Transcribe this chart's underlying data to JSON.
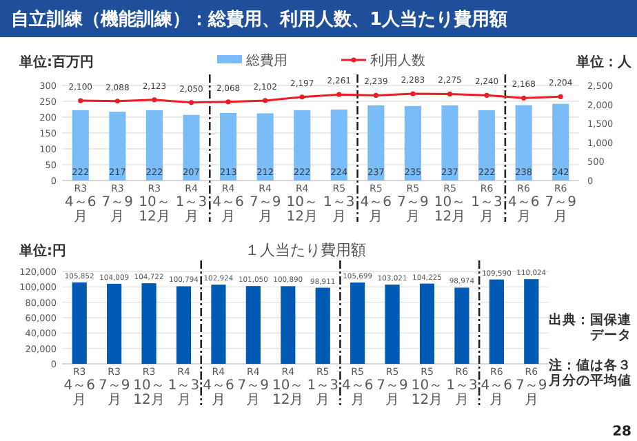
{
  "chart_data": [
    {
      "type": "bar",
      "title": "自立訓練（機能訓練）：総費用、利用人数、1人当たり費用額",
      "ylabel": "単位:百万円",
      "y2label": "単位：人",
      "categories": [
        "R3\n4～6月",
        "R3\n7～9月",
        "R3\n10～12月",
        "R4\n1～3月",
        "R4\n4～6月",
        "R4\n7～9月",
        "R4\n10～12月",
        "R5\n1～3月",
        "R5\n4～6月",
        "R5\n7～9月",
        "R5\n10～12月",
        "R6\n1～3月",
        "R6\n4～6月",
        "R6\n7～9月"
      ],
      "series": [
        {
          "name": "総費用",
          "color": "#7abcf7",
          "values": [
            222,
            217,
            222,
            207,
            213,
            212,
            222,
            224,
            237,
            235,
            237,
            222,
            238,
            242
          ]
        },
        {
          "name": "利用人数",
          "type": "line",
          "axis": "y2",
          "color": "#ee1c25",
          "marker": "circle",
          "values": [
            2100,
            2088,
            2123,
            2050,
            2068,
            2102,
            2197,
            2261,
            2239,
            2283,
            2275,
            2240,
            2168,
            2204
          ],
          "value_labels": [
            "2,100",
            "2,088",
            "2,123",
            "2,050",
            "2,068",
            "2,102",
            "2,197",
            "2,261",
            "2,239",
            "2,283",
            "2,275",
            "2,240",
            "2,168",
            "2,204"
          ]
        }
      ],
      "ylim": [
        0,
        300
      ],
      "yticks": [
        0,
        50,
        100,
        150,
        200,
        250,
        300
      ],
      "y2lim": [
        0,
        2500
      ],
      "y2ticks": [
        0,
        500,
        {
          "value": 1000,
          "label": "1,000"
        },
        {
          "value": 1500,
          "label": "1,500"
        },
        {
          "value": 2000,
          "label": "2,000"
        },
        {
          "value": 2500,
          "label": "2,500"
        }
      ],
      "data_labels": true,
      "grid": "y",
      "legend": "top"
    },
    {
      "type": "bar",
      "title": "１人当たり費用額",
      "ylabel": "単位:円",
      "categories": [
        "R3\n4～6月",
        "R3\n7～9月",
        "R3\n10～12月",
        "R4\n1～3月",
        "R4\n4～6月",
        "R4\n7～9月",
        "R4\n10～12月",
        "R5\n1～3月",
        "R5\n4～6月",
        "R5\n7～9月",
        "R5\n10～12月",
        "R6\n1～3月",
        "R6\n4～6月",
        "R6\n7～9月"
      ],
      "series": [
        {
          "color": "#0059b3",
          "values": [
            105852,
            104009,
            104722,
            100794,
            102924,
            101050,
            100890,
            98911,
            105699,
            103021,
            104225,
            98974,
            109590,
            110024
          ],
          "value_labels": [
            "105,852",
            "104,009",
            "104,722",
            "100,794",
            "102,924",
            "101,050",
            "100,890",
            "98,911",
            "105,699",
            "103,021",
            "104,225",
            "98,974",
            "109,590",
            "110,024"
          ]
        }
      ],
      "ylim": [
        0,
        120000
      ],
      "yticks": [
        0,
        {
          "value": 20000,
          "label": "20,000"
        },
        {
          "value": 40000,
          "label": "40,000"
        },
        {
          "value": 60000,
          "label": "60,000"
        },
        {
          "value": 80000,
          "label": "80,000"
        },
        {
          "value": 100000,
          "label": "100,000"
        },
        {
          "value": 120000,
          "label": "120,000"
        }
      ],
      "annotations": [
        "出典：国保連データ",
        "注：値は各３月分の平均値",
        "28"
      ],
      "grid": "y"
    }
  ]
}
